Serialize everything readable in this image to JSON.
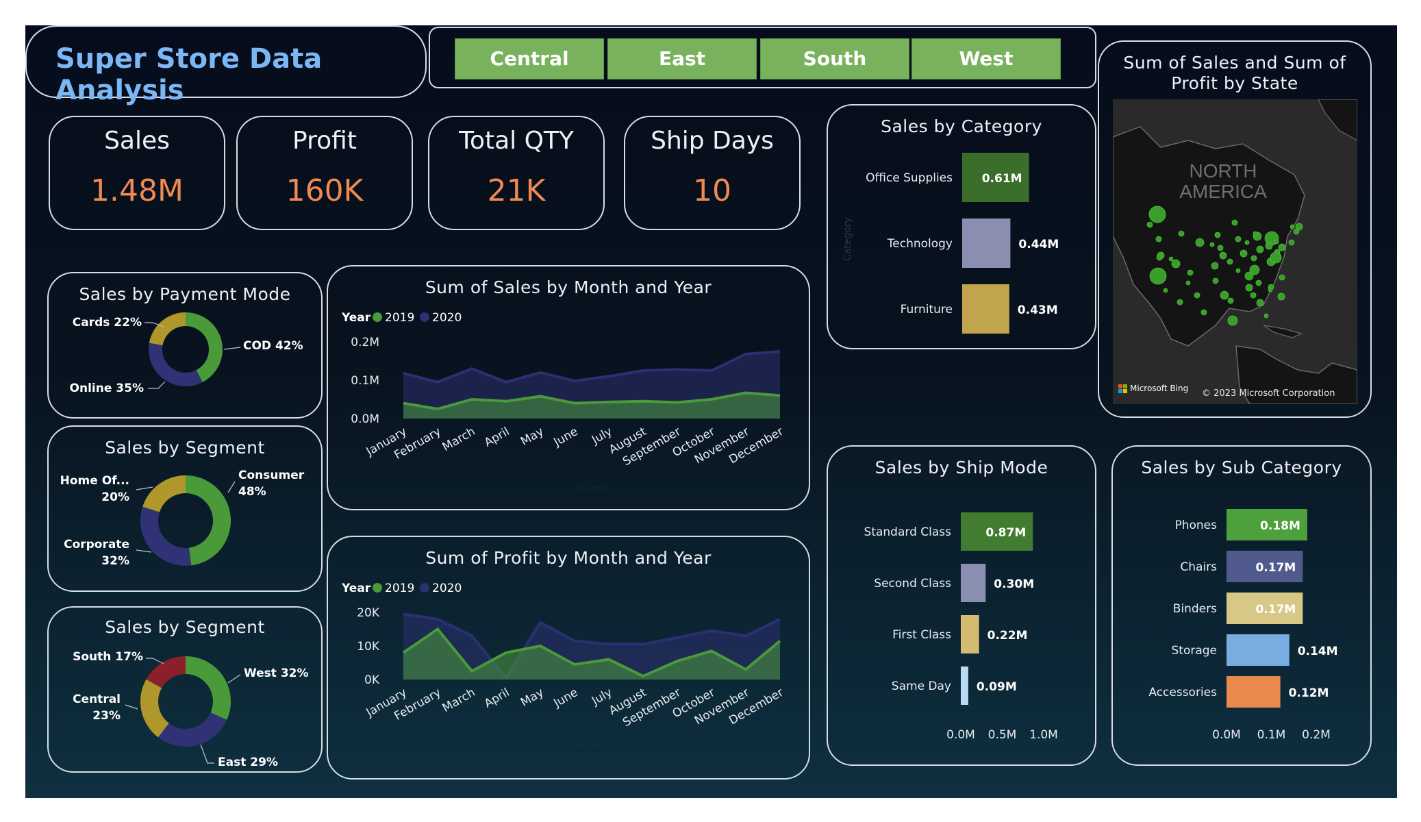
{
  "title": "Super Store Data Analysis",
  "slicer": {
    "items": [
      "Central",
      "East",
      "South",
      "West"
    ]
  },
  "kpis": [
    {
      "label": "Sales",
      "value": "1.48M"
    },
    {
      "label": "Profit",
      "value": "160K"
    },
    {
      "label": "Total QTY",
      "value": "21K"
    },
    {
      "label": "Ship Days",
      "value": "10"
    }
  ],
  "colors": {
    "accent_green": "#4a9a3a",
    "accent_navy": "#2b3070",
    "kpi_orange": "#ef8a52",
    "title_blue": "#7cb7f5"
  },
  "payment_chart": {
    "title": "Sales by Payment Mode",
    "slices": [
      {
        "label": "COD 42%",
        "value": 42,
        "color": "#4a9a3a"
      },
      {
        "label": "Online 35%",
        "value": 35,
        "color": "#2f3274"
      },
      {
        "label": "Cards 22%",
        "value": 22,
        "color": "#b0972c"
      }
    ]
  },
  "segment_chart": {
    "title": "Sales by Segment",
    "slices": [
      {
        "label": "Consumer\n48%",
        "value": 48,
        "color": "#4a9a3a"
      },
      {
        "label": "Corporate\n32%",
        "value": 32,
        "color": "#2f3274"
      },
      {
        "label": "Home Of...\n20%",
        "value": 20,
        "color": "#b0972c"
      }
    ]
  },
  "region_chart": {
    "title": "Sales by Segment",
    "slices": [
      {
        "label": "West 32%",
        "value": 32,
        "color": "#4a9a3a"
      },
      {
        "label": "East 29%",
        "value": 29,
        "color": "#2f3274"
      },
      {
        "label": "Central\n23%",
        "value": 23,
        "color": "#b0972c"
      },
      {
        "label": "South 17%",
        "value": 17,
        "color": "#8b1f2b"
      }
    ]
  },
  "sales_month": {
    "title": "Sum of Sales by Month and Year",
    "legend_title": "Year",
    "xlabel": "Month",
    "months": [
      "January",
      "February",
      "March",
      "April",
      "May",
      "June",
      "July",
      "August",
      "September",
      "October",
      "November",
      "December"
    ],
    "series": [
      {
        "name": "2019",
        "color": "#4a9a3a",
        "values": [
          0.04,
          0.025,
          0.05,
          0.045,
          0.058,
          0.04,
          0.043,
          0.045,
          0.042,
          0.05,
          0.067,
          0.06
        ]
      },
      {
        "name": "2020",
        "color": "#2b3070",
        "values": [
          0.118,
          0.095,
          0.13,
          0.095,
          0.12,
          0.098,
          0.11,
          0.125,
          0.128,
          0.125,
          0.168,
          0.175
        ]
      }
    ],
    "yticks": [
      "0.0M",
      "0.1M",
      "0.2M"
    ],
    "ymax": 0.2
  },
  "profit_month": {
    "title": "Sum of Profit by Month and Year",
    "legend_title": "Year",
    "xlabel": "Month",
    "months": [
      "January",
      "February",
      "March",
      "April",
      "May",
      "June",
      "July",
      "August",
      "September",
      "October",
      "November",
      "December"
    ],
    "series": [
      {
        "name": "2019",
        "color": "#4a9a3a",
        "values": [
          8000,
          15000,
          2500,
          8000,
          10000,
          4500,
          6000,
          1000,
          5500,
          8500,
          3000,
          11500
        ]
      },
      {
        "name": "2020",
        "color": "#2b3070",
        "values": [
          19500,
          18000,
          13000,
          500,
          17000,
          11500,
          10500,
          10500,
          12500,
          14500,
          13000,
          18000
        ]
      }
    ],
    "yticks": [
      "0K",
      "10K",
      "20K"
    ],
    "ymax": 20000
  },
  "category_chart": {
    "title": "Sales by Category",
    "ylabel": "Category",
    "bars": [
      {
        "label": "Office Supplies",
        "value": 0.61,
        "text": "0.61M",
        "color": "#3b6e2b"
      },
      {
        "label": "Technology",
        "value": 0.44,
        "text": "0.44M",
        "color": "#8a8fb2"
      },
      {
        "label": "Furniture",
        "value": 0.43,
        "text": "0.43M",
        "color": "#c2a44e"
      }
    ],
    "xticks": [
      "0.0M",
      "0.5M"
    ],
    "xmax": 0.5
  },
  "shipmode_chart": {
    "title": "Sales by Ship Mode",
    "bars": [
      {
        "label": "Standard Class",
        "value": 0.87,
        "text": "0.87M",
        "color": "#427c30"
      },
      {
        "label": "Second Class",
        "value": 0.3,
        "text": "0.30M",
        "color": "#8a8fb2"
      },
      {
        "label": "First Class",
        "value": 0.22,
        "text": "0.22M",
        "color": "#d4bb72"
      },
      {
        "label": "Same Day",
        "value": 0.09,
        "text": "0.09M",
        "color": "#b9daf0"
      }
    ],
    "xticks": [
      "0.0M",
      "0.5M",
      "1.0M"
    ],
    "xmax": 1.0
  },
  "subcat_chart": {
    "title": "Sales by Sub Category",
    "bars": [
      {
        "label": "Phones",
        "value": 0.18,
        "text": "0.18M",
        "color": "#4ea03c"
      },
      {
        "label": "Chairs",
        "value": 0.17,
        "text": "0.17M",
        "color": "#515a8c"
      },
      {
        "label": "Binders",
        "value": 0.17,
        "text": "0.17M",
        "color": "#d7c886"
      },
      {
        "label": "Storage",
        "value": 0.14,
        "text": "0.14M",
        "color": "#79ace0"
      },
      {
        "label": "Accessories",
        "value": 0.12,
        "text": "0.12M",
        "color": "#e98a4c"
      }
    ],
    "xticks": [
      "0.0M",
      "0.1M",
      "0.2M"
    ],
    "xmax": 0.2
  },
  "map": {
    "title": "Sum of Sales and Sum of Profit by State",
    "region_label": "NORTH\nAMERICA",
    "bing_text": "Microsoft Bing",
    "copyright": "© 2023 Microsoft Corporation"
  }
}
